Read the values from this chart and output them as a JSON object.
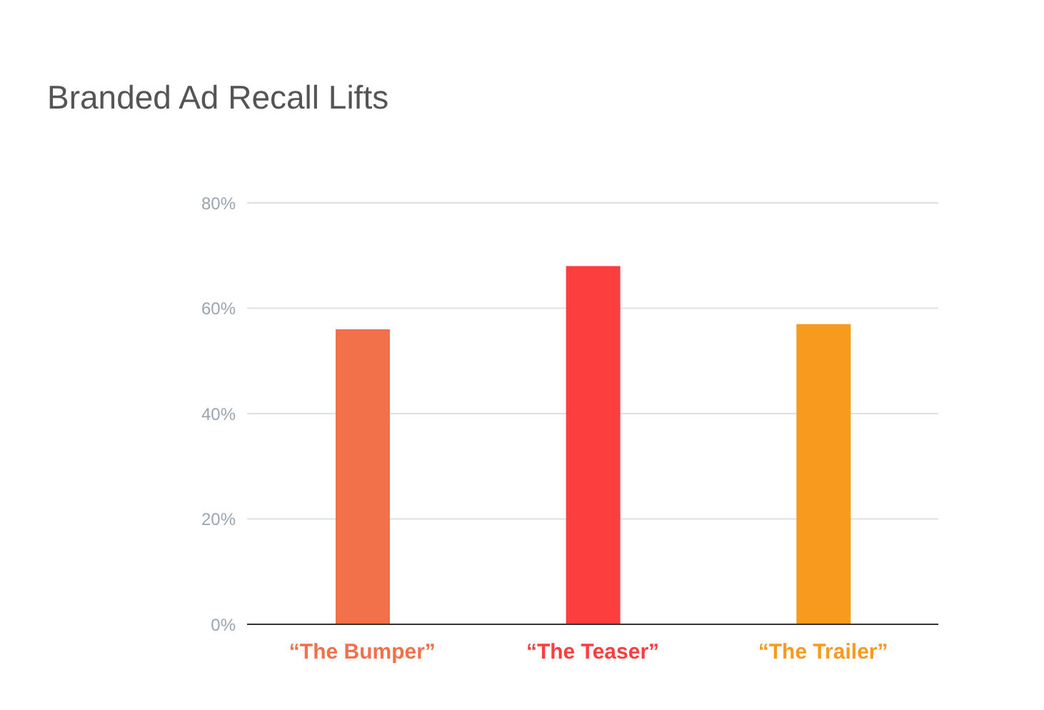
{
  "chart_data": {
    "type": "bar",
    "title": "Branded Ad Recall Lifts",
    "categories": [
      "“The Bumper”",
      "“The Teaser”",
      "“The Trailer”"
    ],
    "values": [
      56,
      68,
      57
    ],
    "colors": [
      "#f2714a",
      "#fc3e3e",
      "#f89a1e"
    ],
    "ylim": [
      0,
      80
    ],
    "yticks": [
      {
        "value": 0,
        "label": "0%"
      },
      {
        "value": 20,
        "label": "20%"
      },
      {
        "value": 40,
        "label": "40%"
      },
      {
        "value": 60,
        "label": "60%"
      },
      {
        "value": 80,
        "label": "80%"
      }
    ],
    "grid": "y"
  }
}
